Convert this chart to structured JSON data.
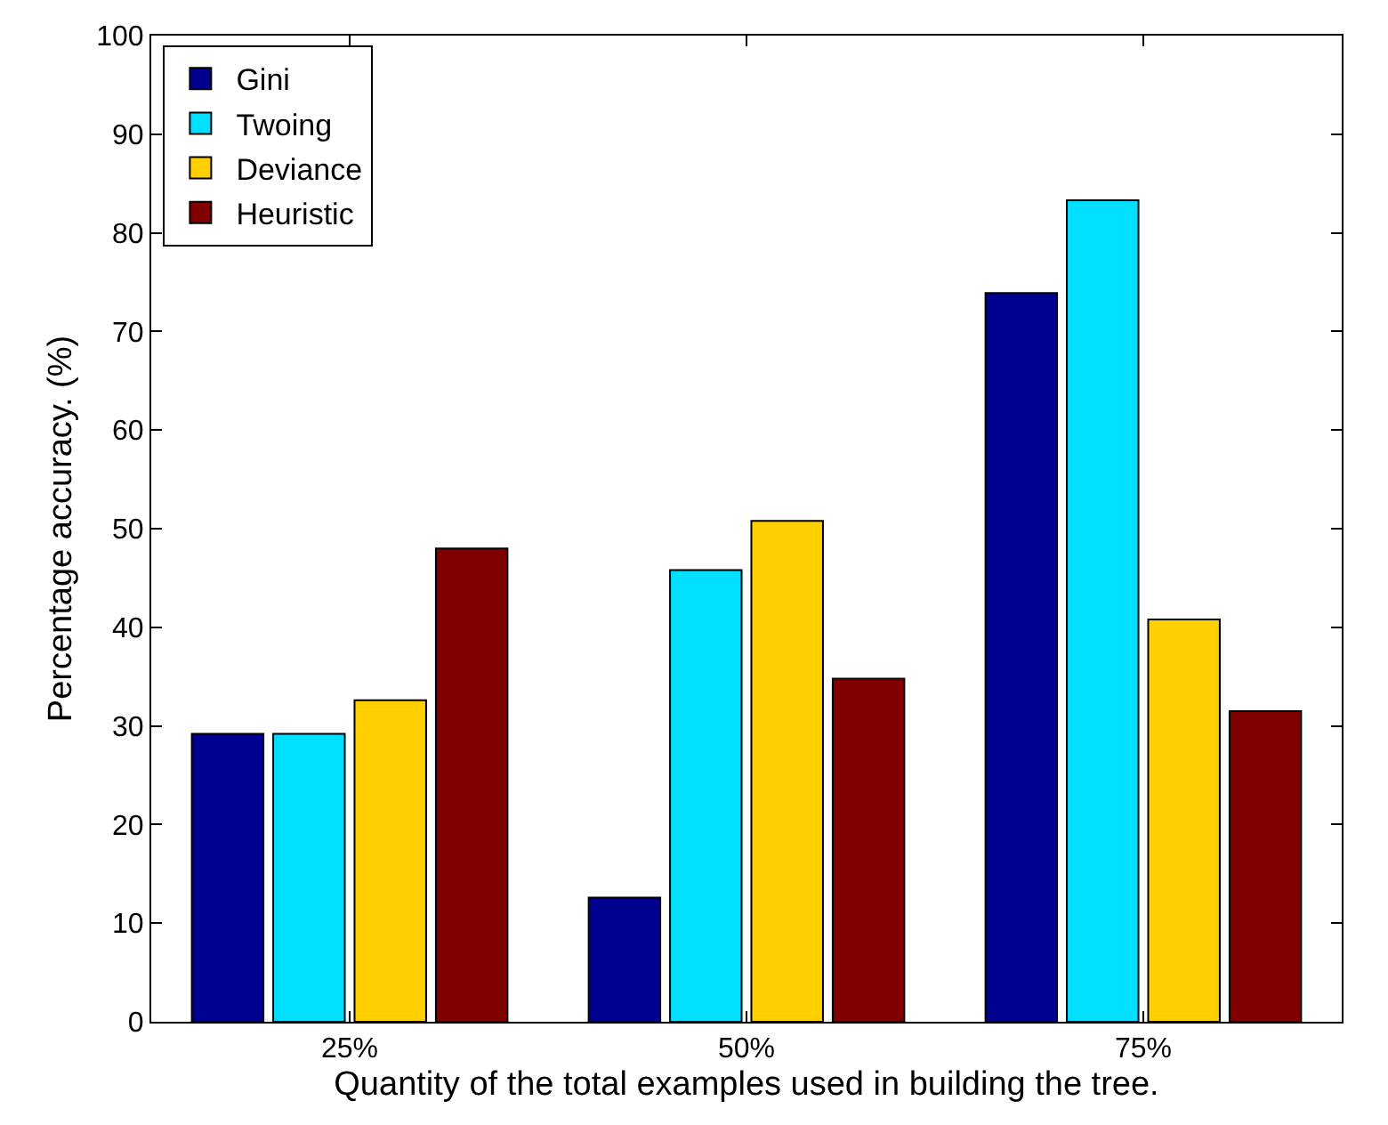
{
  "chart_data": {
    "type": "bar",
    "xlabel": "Quantity of the total examples used in building the tree.",
    "ylabel": "Percentage accuracy. (%)",
    "categories": [
      "25%",
      "50%",
      "75%"
    ],
    "series": [
      {
        "name": "Gini",
        "color": "#00008f",
        "values": [
          29.2,
          12.6,
          73.9
        ]
      },
      {
        "name": "Twoing",
        "color": "#00dfff",
        "values": [
          29.2,
          45.8,
          83.3
        ]
      },
      {
        "name": "Deviance",
        "color": "#ffcf00",
        "values": [
          32.6,
          50.8,
          40.8
        ]
      },
      {
        "name": "Heuristic",
        "color": "#800000",
        "values": [
          48.0,
          34.8,
          31.5
        ]
      }
    ],
    "ylim": [
      0,
      100
    ],
    "yticks": [
      0,
      10,
      20,
      30,
      40,
      50,
      60,
      70,
      80,
      90,
      100
    ],
    "legend": "top left"
  }
}
